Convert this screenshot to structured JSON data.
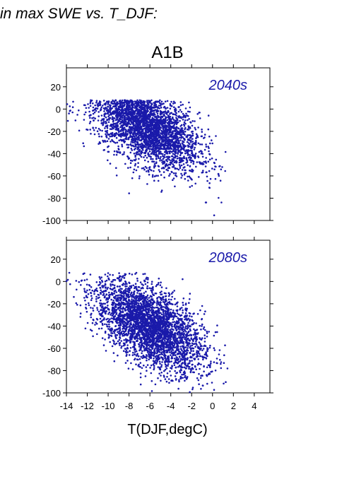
{
  "header_text": "in max SWE vs. T_DJF:",
  "chart_data": {
    "type": "scatter",
    "title": "A1B",
    "xlabel": "T(DJF,degC)",
    "ylabel": "",
    "xlim": [
      -14,
      5.5
    ],
    "ylim": [
      -100,
      37
    ],
    "x_ticks": [
      "-14",
      "-12",
      "-10",
      "-8",
      "-6",
      "-4",
      "-2",
      "0",
      "2",
      "4"
    ],
    "y_ticks": [
      "-100",
      "-80",
      "-60",
      "-40",
      "-20",
      "0",
      "20"
    ],
    "grid": false,
    "point_color": "#1a1aaa",
    "panels": [
      {
        "label": "2040s",
        "point_count_approx": 3500,
        "cloud_summary": {
          "x_range": [
            -14,
            1.5
          ],
          "y_range": [
            -97,
            8
          ],
          "densest_region": {
            "x": [
              -9,
              -4
            ],
            "y": [
              -30,
              2
            ]
          },
          "trend": "SWE decreases as winter temperature increases"
        }
      },
      {
        "label": "2080s",
        "point_count_approx": 3500,
        "cloud_summary": {
          "x_range": [
            -14,
            1.5
          ],
          "y_range": [
            -100,
            8
          ],
          "densest_region": {
            "x": [
              -8,
              -4
            ],
            "y": [
              -60,
              -20
            ]
          },
          "trend": "SWE decreases as winter temperature increases"
        }
      }
    ]
  }
}
